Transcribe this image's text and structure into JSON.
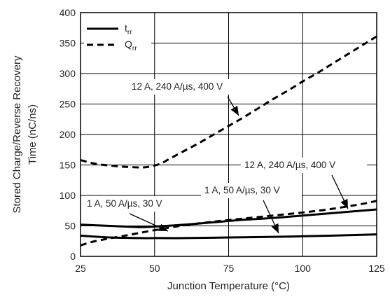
{
  "chart_data": {
    "type": "line",
    "xlabel": "Junction Temperature (°C)",
    "ylabel_line1": "Stored Charge/Reverse Recovery",
    "ylabel_line2": "Time (nC/ns)",
    "xlim": [
      25,
      125
    ],
    "ylim": [
      0,
      400
    ],
    "x_ticks": [
      "25",
      "50",
      "75",
      "100",
      "125"
    ],
    "y_ticks": [
      "0",
      "50",
      "100",
      "150",
      "200",
      "250",
      "300",
      "350",
      "400"
    ],
    "grid": true,
    "legend": {
      "placement": "top-left",
      "entries": [
        {
          "main": "t",
          "sub": "rr",
          "style": "solid"
        },
        {
          "main": "Q",
          "sub": "rr",
          "style": "dashed"
        }
      ]
    },
    "series": [
      {
        "label": "Qrr 12 A, 240 A/µs, 400 V",
        "style": "dashed",
        "x": [
          25,
          30,
          35,
          40,
          45,
          48,
          52,
          55,
          60,
          65,
          70,
          75,
          80,
          85,
          90,
          95,
          100,
          105,
          110,
          115,
          120,
          125
        ],
        "y": [
          158,
          152,
          149,
          147,
          146,
          147,
          152,
          160,
          173,
          186,
          200,
          214,
          228,
          243,
          258,
          272,
          287,
          301,
          316,
          331,
          346,
          361
        ]
      },
      {
        "label": "trr 12 A, 240 A/µs, 400 V",
        "style": "solid",
        "x": [
          25,
          35,
          45,
          50,
          60,
          70,
          80,
          90,
          100,
          110,
          120,
          125
        ],
        "y": [
          52,
          50,
          48,
          49,
          52,
          56,
          60,
          63,
          67,
          71,
          75,
          77
        ]
      },
      {
        "label": "Qrr 1 A, 50 A/µs, 30 V",
        "style": "dashed",
        "x": [
          25,
          30,
          40,
          50,
          60,
          70,
          80,
          90,
          100,
          110,
          120,
          125
        ],
        "y": [
          18,
          25,
          34,
          43,
          51,
          57,
          62,
          67,
          72,
          78,
          86,
          91
        ]
      },
      {
        "label": "trr 1 A, 50 A/µs, 30 V",
        "style": "solid",
        "x": [
          25,
          35,
          45,
          50,
          60,
          75,
          90,
          100,
          110,
          125
        ],
        "y": [
          34,
          31,
          30,
          30,
          30,
          31,
          32,
          33,
          34,
          36
        ]
      }
    ],
    "annotations": [
      {
        "text": "12 A, 240 A/µs, 400 V"
      },
      {
        "text": "12 A, 240 A/µs, 400 V"
      },
      {
        "text": "1 A, 50 A/µs, 30 V"
      },
      {
        "text": "1 A, 50 A/µs, 30 V"
      }
    ]
  }
}
